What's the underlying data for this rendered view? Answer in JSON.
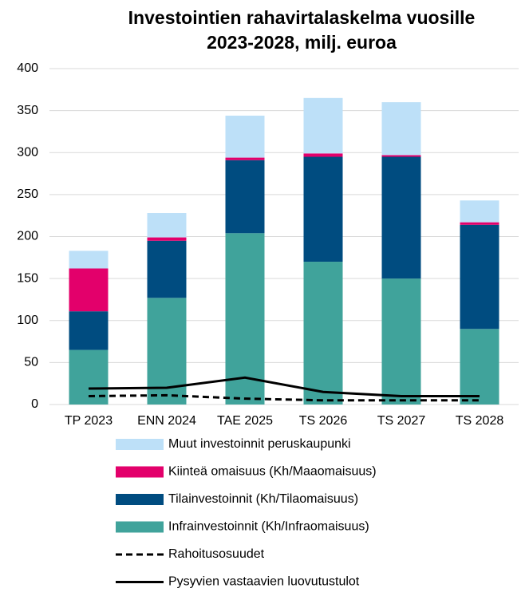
{
  "chart_data": {
    "type": "bar",
    "title": [
      "Investointien rahavirtalaskelma vuosille",
      "2023-2028, milj. euroa"
    ],
    "categories": [
      "TP 2023",
      "ENN 2024",
      "TAE 2025",
      "TS 2026",
      "TS 2027",
      "TS 2028"
    ],
    "stacked": true,
    "series": [
      {
        "name": "Muut investoinnit peruskaupunki",
        "type": "bar",
        "color": "#bde0f8",
        "values": [
          21,
          29,
          50,
          66,
          63,
          26
        ]
      },
      {
        "name": "Kiinteä omaisuus (Kh/Maaomaisuus)",
        "type": "bar",
        "color": "#e3006b",
        "values": [
          51,
          4,
          3,
          4,
          2,
          3
        ]
      },
      {
        "name": "Tilainvestoinnit (Kh/Tilaomaisuus)",
        "type": "bar",
        "color": "#004c80",
        "values": [
          46,
          68,
          87,
          125,
          145,
          124
        ]
      },
      {
        "name": "Infrainvestoinnit (Kh/Infraomaisuus)",
        "type": "bar",
        "color": "#40a39b",
        "values": [
          65,
          127,
          204,
          170,
          150,
          90
        ]
      },
      {
        "name": "Rahoitusosuudet",
        "type": "line",
        "dash": true,
        "color": "#000000",
        "values": [
          10,
          11,
          7,
          5,
          5,
          5
        ]
      },
      {
        "name": "Pysyvien vastaavien luovutustulot",
        "type": "line",
        "dash": false,
        "color": "#000000",
        "values": [
          19,
          20,
          32,
          15,
          10,
          10
        ]
      }
    ],
    "ylim": [
      0,
      400
    ],
    "yticks": [
      0,
      50,
      100,
      150,
      200,
      250,
      300,
      350,
      400
    ],
    "grid": true,
    "legend": "bottom"
  }
}
